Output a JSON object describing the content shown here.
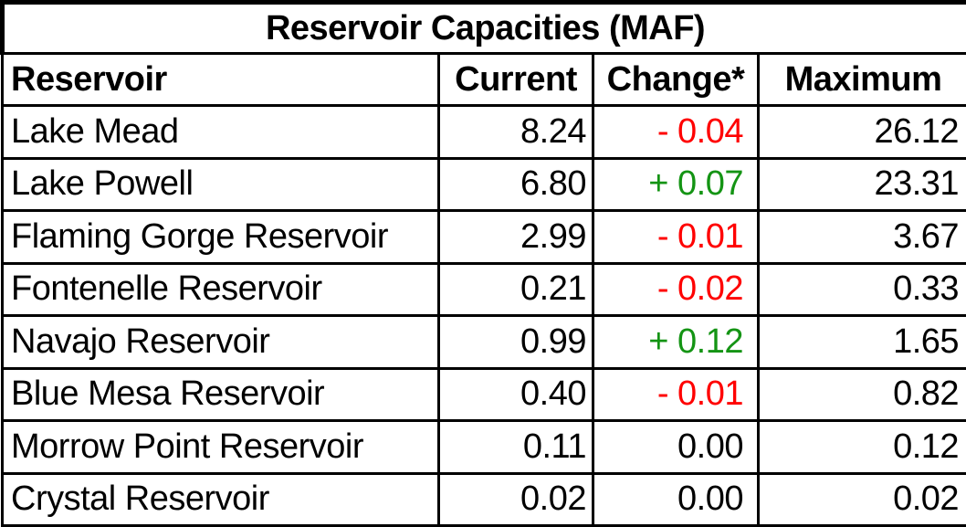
{
  "title": "Reservoir Capacities (MAF)",
  "columns": [
    "Reservoir",
    "Current",
    "Change*",
    "Maximum"
  ],
  "rows": [
    {
      "reservoir": "Lake Mead",
      "current": "8.24",
      "change": "- 0.04",
      "maximum": "26.12"
    },
    {
      "reservoir": "Lake Powell",
      "current": "6.80",
      "change": "+ 0.07",
      "maximum": "23.31"
    },
    {
      "reservoir": "Flaming Gorge Reservoir",
      "current": "2.99",
      "change": "- 0.01",
      "maximum": "3.67"
    },
    {
      "reservoir": "Fontenelle Reservoir",
      "current": "0.21",
      "change": "- 0.02",
      "maximum": "0.33"
    },
    {
      "reservoir": "Navajo Reservoir",
      "current": "0.99",
      "change": "+ 0.12",
      "maximum": "1.65"
    },
    {
      "reservoir": "Blue Mesa Reservoir",
      "current": "0.40",
      "change": "- 0.01",
      "maximum": "0.82"
    },
    {
      "reservoir": "Morrow Point Reservoir",
      "current": "0.11",
      "change": "0.00",
      "maximum": "0.12"
    },
    {
      "reservoir": "Crystal Reservoir",
      "current": "0.02",
      "change": "0.00",
      "maximum": "0.02"
    }
  ],
  "colors": {
    "negative": "#ff0000",
    "positive": "#149414",
    "text": "#000000",
    "border": "#000000",
    "background": "#ffffff"
  },
  "chart_data": {
    "type": "table",
    "title": "Reservoir Capacities (MAF)",
    "columns": [
      "Reservoir",
      "Current",
      "Change*",
      "Maximum"
    ],
    "rows": [
      [
        "Lake Mead",
        8.24,
        -0.04,
        26.12
      ],
      [
        "Lake Powell",
        6.8,
        0.07,
        23.31
      ],
      [
        "Flaming Gorge Reservoir",
        2.99,
        -0.01,
        3.67
      ],
      [
        "Fontenelle Reservoir",
        0.21,
        -0.02,
        0.33
      ],
      [
        "Navajo Reservoir",
        0.99,
        0.12,
        1.65
      ],
      [
        "Blue Mesa Reservoir",
        0.4,
        -0.01,
        0.82
      ],
      [
        "Morrow Point Reservoir",
        0.11,
        0.0,
        0.12
      ],
      [
        "Crystal Reservoir",
        0.02,
        0.0,
        0.02
      ]
    ]
  }
}
